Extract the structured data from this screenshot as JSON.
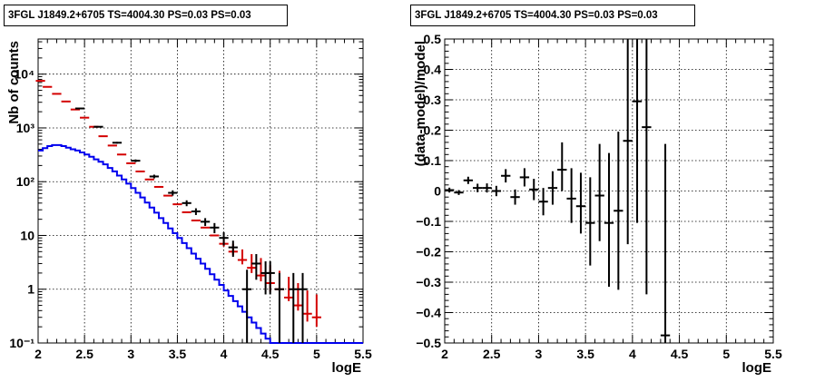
{
  "colors": {
    "data": "#000000",
    "counts": "#d40000",
    "model": "#0000ee",
    "grid": "#000000"
  },
  "chart_data": [
    {
      "type": "step",
      "title": "3FGL J1849.2+6705 TS=4004.30 PS=0.03 PS=0.03",
      "xlabel": "logE",
      "ylabel": "Nb of counts",
      "xlim": [
        2,
        5.5
      ],
      "ylim": [
        0.1,
        45000
      ],
      "log_y": true,
      "grid": true,
      "x_ticks": [
        2,
        2.5,
        3,
        3.5,
        4,
        4.5,
        5,
        5.5
      ],
      "x_tick_labels": [
        "2",
        "2.5",
        "3",
        "3.5",
        "4",
        "4.5",
        "5",
        "5.5"
      ],
      "y_ticks": [
        0.1,
        1,
        10,
        100,
        1000,
        10000
      ],
      "y_tick_labels": [
        "10⁻¹",
        "1",
        "10",
        "10²",
        "10³",
        "10⁴"
      ],
      "series": [
        {
          "kind": "model-step",
          "color": "#0000ee",
          "x_edges": [
            2.0,
            2.05,
            2.1,
            2.15,
            2.2,
            2.25,
            2.3,
            2.35,
            2.4,
            2.45,
            2.5,
            2.55,
            2.6,
            2.65,
            2.7,
            2.75,
            2.8,
            2.85,
            2.9,
            2.95,
            3.0,
            3.05,
            3.1,
            3.15,
            3.2,
            3.25,
            3.3,
            3.35,
            3.4,
            3.45,
            3.5,
            3.55,
            3.6,
            3.65,
            3.7,
            3.75,
            3.8,
            3.85,
            3.9,
            3.95,
            4.0,
            4.05,
            4.1,
            4.15,
            4.2,
            4.25,
            4.3,
            4.35,
            4.4,
            4.45,
            4.5,
            4.55,
            4.6,
            4.65,
            4.7,
            4.75,
            4.8,
            4.85,
            4.9,
            4.95,
            5.0,
            5.05,
            5.1,
            5.15,
            5.2,
            5.25,
            5.3,
            5.35,
            5.4,
            5.45,
            5.5
          ],
          "values": [
            380,
            420,
            460,
            480,
            480,
            460,
            430,
            400,
            380,
            350,
            320,
            290,
            260,
            235,
            210,
            180,
            155,
            130,
            110,
            92,
            76,
            62,
            51,
            41,
            33,
            26.5,
            21,
            17,
            13.5,
            11,
            9,
            7.2,
            5.8,
            4.6,
            3.7,
            3.0,
            2.4,
            1.9,
            1.5,
            1.2,
            0.95,
            0.75,
            0.6,
            0.48,
            0.38,
            0.3,
            0.24,
            0.19,
            0.15,
            0.12,
            0.1,
            0.1,
            0.1,
            0.1,
            0.1,
            0.1,
            0.1,
            0.1,
            0.1,
            0.1,
            0.1,
            0.1,
            0.1,
            0.1,
            0.1,
            0.1,
            0.1,
            0.1,
            0.1,
            0.1
          ]
        },
        {
          "kind": "errorbar",
          "color": "#d40000",
          "x": [
            2.025,
            2.1,
            2.2,
            2.3,
            2.4,
            2.5,
            2.6,
            2.7,
            2.8,
            2.9,
            3.0,
            3.1,
            3.2,
            3.3,
            3.4,
            3.5,
            3.6,
            3.7,
            3.8,
            3.9,
            4.0,
            4.1,
            4.2,
            4.3,
            4.4,
            4.5,
            4.6,
            4.7,
            4.8,
            4.9,
            5.0
          ],
          "y": [
            7500,
            5800,
            4300,
            3100,
            2200,
            1550,
            1050,
            700,
            470,
            320,
            220,
            155,
            110,
            80,
            55,
            38,
            27,
            19,
            14,
            10,
            7,
            5,
            3.5,
            2.5,
            1.8,
            1.3,
            1,
            0.7,
            0.5,
            0.35,
            0.3
          ],
          "err_low": [
            0,
            0,
            0,
            0,
            0,
            0,
            0,
            0,
            0,
            0,
            0,
            0,
            0,
            0,
            0,
            0,
            0,
            0,
            0,
            0,
            0.8,
            0.7,
            0.6,
            0.5,
            0.4,
            0.4,
            0.1,
            0.1,
            0.1,
            0.1,
            0.1
          ],
          "err_high": [
            0,
            0,
            0,
            0,
            0,
            0,
            0,
            0,
            0,
            0,
            0,
            0,
            0,
            0,
            0,
            0,
            0,
            0,
            0,
            0,
            2,
            2,
            2,
            2,
            2,
            1.5,
            1.2,
            1,
            0.8,
            0.6,
            0.5
          ],
          "half_width": 0.05
        },
        {
          "kind": "errorbar",
          "color": "#000000",
          "x": [
            2.45,
            2.65,
            2.85,
            3.05,
            3.25,
            3.45,
            3.6,
            3.7,
            3.8,
            3.9,
            4.0,
            4.1,
            4.25,
            4.35,
            4.45,
            4.5,
            4.6,
            4.75,
            4.85
          ],
          "y": [
            2300,
            1050,
            530,
            245,
            125,
            62,
            40,
            28,
            18,
            14,
            9,
            6,
            1,
            3,
            2,
            2,
            1,
            1,
            1
          ],
          "err_low": [
            40,
            25,
            20,
            14,
            10,
            7,
            5,
            4,
            3,
            3,
            2.5,
            2,
            0.9,
            1.5,
            1.2,
            1.2,
            0.9,
            0.9,
            0.9
          ],
          "err_high": [
            40,
            25,
            20,
            14,
            10,
            7,
            5,
            4,
            3,
            3,
            2.5,
            2,
            1.3,
            1.5,
            1.3,
            1.3,
            1,
            1,
            1
          ],
          "half_width": 0.05
        }
      ]
    },
    {
      "type": "scatter",
      "title": "3FGL J1849.2+6705 TS=4004.30 PS=0.03 PS=0.03",
      "xlabel": "logE",
      "ylabel": "(data-model)/model",
      "xlim": [
        2,
        5.5
      ],
      "ylim": [
        -0.5,
        0.5
      ],
      "log_y": false,
      "grid": true,
      "x_ticks": [
        2,
        2.5,
        3,
        3.5,
        4,
        4.5,
        5,
        5.5
      ],
      "x_tick_labels": [
        "2",
        "2.5",
        "3",
        "3.5",
        "4",
        "4.5",
        "5",
        "5.5"
      ],
      "y_ticks": [
        -0.5,
        -0.4,
        -0.3,
        -0.2,
        -0.1,
        0,
        0.1,
        0.2,
        0.3,
        0.4,
        0.5
      ],
      "y_tick_labels": [
        "−0.5",
        "−0.4",
        "−0.3",
        "−0.2",
        "−0.1",
        "0",
        "0.1",
        "0.2",
        "0.3",
        "0.4",
        "0.5"
      ],
      "series": [
        {
          "kind": "errorbar",
          "color": "#000000",
          "x": [
            2.05,
            2.15,
            2.25,
            2.35,
            2.45,
            2.55,
            2.65,
            2.75,
            2.85,
            2.95,
            3.05,
            3.15,
            3.25,
            3.35,
            3.45,
            3.55,
            3.65,
            3.75,
            3.85,
            3.95,
            4.05,
            4.15,
            4.35
          ],
          "y": [
            0.003,
            -0.005,
            0.035,
            0.01,
            0.01,
            0.0,
            0.05,
            -0.02,
            0.045,
            0.005,
            -0.035,
            0.01,
            0.07,
            -0.025,
            -0.05,
            -0.105,
            -0.015,
            -0.105,
            -0.065,
            0.165,
            0.295,
            0.21,
            -0.475
          ],
          "err_low": [
            0.008,
            0.008,
            0.012,
            0.014,
            0.015,
            0.017,
            0.022,
            0.025,
            0.03,
            0.035,
            0.045,
            0.055,
            0.07,
            0.08,
            0.09,
            0.14,
            0.15,
            0.21,
            0.26,
            0.34,
            0.4,
            0.55,
            0.025
          ],
          "err_high": [
            0.008,
            0.008,
            0.012,
            0.014,
            0.015,
            0.017,
            0.022,
            0.025,
            0.03,
            0.035,
            0.045,
            0.055,
            0.09,
            0.1,
            0.11,
            0.15,
            0.17,
            0.23,
            0.26,
            0.34,
            0.205,
            0.29,
            0.63
          ],
          "half_width": 0.05
        }
      ]
    }
  ]
}
